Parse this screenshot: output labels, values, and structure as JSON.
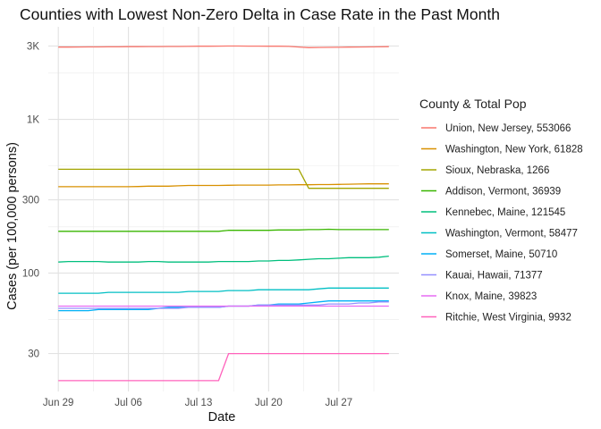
{
  "chart_data": {
    "type": "line",
    "title": "Counties with Lowest Non-Zero Delta in Case Rate in the Past Month",
    "xlabel": "Date",
    "ylabel": "Cases (per 100,000 persons)",
    "y_scale": "log10",
    "ylim": [
      17,
      4000
    ],
    "y_ticks": [
      30,
      100,
      300,
      1000,
      3000
    ],
    "y_tick_labels": [
      "30",
      "100",
      "300",
      "1K",
      "3K"
    ],
    "y_minor_ticks": [
      50,
      200,
      500,
      2000
    ],
    "x_start": "2020-06-29",
    "x_end": "2020-08-01",
    "xlim": [
      "2020-06-28",
      "2020-08-02"
    ],
    "x_tick_labels": [
      "Jun 29",
      "Jul 06",
      "Jul 13",
      "Jul 20",
      "Jul 27"
    ],
    "x_tick_dates": [
      "2020-06-29",
      "2020-07-06",
      "2020-07-13",
      "2020-07-20",
      "2020-07-27"
    ],
    "legend_title": "County & Total Pop",
    "legend_position": "right",
    "grid": true,
    "series": [
      {
        "name": "Union, New Jersey, 553066",
        "color": "#F8766D",
        "values": [
          2950,
          2950,
          2955,
          2960,
          2960,
          2965,
          2965,
          2970,
          2970,
          2975,
          2975,
          2980,
          2980,
          2985,
          2990,
          2990,
          2995,
          3000,
          3000,
          2995,
          2995,
          2990,
          2990,
          2985,
          2955,
          2930,
          2935,
          2940,
          2945,
          2950,
          2955,
          2960,
          2965,
          2970
        ]
      },
      {
        "name": "Washington, New York, 61828",
        "color": "#D89000",
        "values": [
          365,
          365,
          365,
          365,
          365,
          365,
          365,
          365,
          366,
          368,
          368,
          368,
          370,
          372,
          372,
          372,
          372,
          373,
          374,
          374,
          374,
          374,
          375,
          375,
          376,
          376,
          377,
          377,
          378,
          379,
          380,
          381,
          381,
          381
        ]
      },
      {
        "name": "Sioux, Nebraska, 1266",
        "color": "#A3A500",
        "values": [
          474,
          474,
          474,
          474,
          474,
          474,
          474,
          474,
          474,
          474,
          474,
          474,
          474,
          474,
          474,
          474,
          474,
          474,
          474,
          474,
          474,
          474,
          474,
          474,
          474,
          356,
          356,
          356,
          356,
          356,
          356,
          356,
          356,
          356
        ]
      },
      {
        "name": "Addison, Vermont, 36939",
        "color": "#39B600",
        "values": [
          187,
          187,
          187,
          187,
          187,
          187,
          187,
          187,
          187,
          187,
          187,
          187,
          187,
          187,
          187,
          187,
          187,
          190,
          190,
          190,
          190,
          190,
          191,
          191,
          191,
          192,
          192,
          193,
          192,
          192,
          192,
          192,
          192,
          192
        ]
      },
      {
        "name": "Kennebec, Maine, 121545",
        "color": "#00BF7D",
        "values": [
          118,
          119,
          119,
          119,
          119,
          118,
          118,
          118,
          118,
          119,
          119,
          118,
          118,
          118,
          118,
          118,
          119,
          119,
          119,
          119,
          120,
          120,
          121,
          121,
          122,
          123,
          124,
          124,
          125,
          126,
          126,
          126,
          127,
          129
        ]
      },
      {
        "name": "Washington, Vermont, 58477",
        "color": "#00BFC4",
        "values": [
          74,
          74,
          74,
          74,
          74,
          75,
          75,
          75,
          75,
          75,
          75,
          75,
          75,
          76,
          76,
          76,
          76,
          77,
          77,
          77,
          78,
          78,
          78,
          78,
          78,
          78,
          79,
          80,
          80,
          80,
          80,
          80,
          80,
          80
        ]
      },
      {
        "name": "Somerset, Maine, 50710",
        "color": "#00B0F6",
        "values": [
          57,
          57,
          57,
          57,
          58,
          58,
          58,
          58,
          58,
          58,
          59,
          60,
          60,
          60,
          60,
          60,
          60,
          61,
          61,
          61,
          62,
          62,
          63,
          63,
          63,
          64,
          65,
          66,
          66,
          66,
          66,
          66,
          66,
          66
        ]
      },
      {
        "name": "Kauai, Hawaii, 71377",
        "color": "#9590FF",
        "values": [
          59,
          59,
          59,
          59,
          59,
          59,
          59,
          59,
          59,
          59,
          59,
          59,
          59,
          60,
          60,
          60,
          60,
          61,
          61,
          61,
          62,
          62,
          62,
          62,
          62,
          62,
          62,
          63,
          63,
          63,
          64,
          64,
          65,
          65
        ]
      },
      {
        "name": "Knox, Maine, 39823",
        "color": "#E76BF3",
        "values": [
          61,
          61,
          61,
          61,
          61,
          61,
          61,
          61,
          61,
          61,
          61,
          61,
          61,
          61,
          61,
          61,
          61,
          61,
          61,
          61,
          61,
          61,
          61,
          61,
          61,
          61,
          61,
          61,
          61,
          61,
          61,
          61,
          61,
          61
        ]
      },
      {
        "name": "Ritchie, West Virginia, 9932",
        "color": "#FF62BC",
        "values": [
          20,
          20,
          20,
          20,
          20,
          20,
          20,
          20,
          20,
          20,
          20,
          20,
          20,
          20,
          20,
          20,
          20,
          30,
          30,
          30,
          30,
          30,
          30,
          30,
          30,
          30,
          30,
          30,
          30,
          30,
          30,
          30,
          30,
          30
        ]
      }
    ]
  }
}
